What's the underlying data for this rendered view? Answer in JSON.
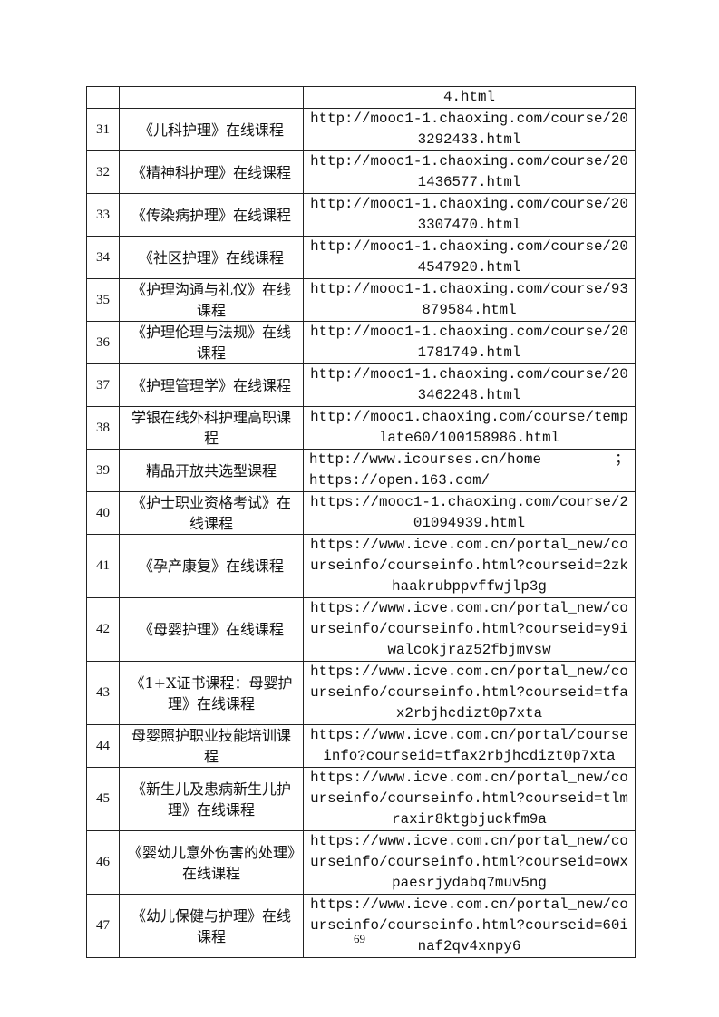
{
  "table": {
    "rows": [
      {
        "no": "",
        "name": "",
        "url": "4.html"
      },
      {
        "no": "31",
        "name": "《儿科护理》在线课程",
        "url": "http://mooc1-1.chaoxing.com/course/203292433.html"
      },
      {
        "no": "32",
        "name": "《精神科护理》在线课程",
        "url": "http://mooc1-1.chaoxing.com/course/201436577.html"
      },
      {
        "no": "33",
        "name": "《传染病护理》在线课程",
        "url": "http://mooc1-1.chaoxing.com/course/203307470.html"
      },
      {
        "no": "34",
        "name": "《社区护理》在线课程",
        "url": "http://mooc1-1.chaoxing.com/course/204547920.html"
      },
      {
        "no": "35",
        "name": "《护理沟通与礼仪》在线课程",
        "url": "http://mooc1-1.chaoxing.com/course/93879584.html"
      },
      {
        "no": "36",
        "name": "《护理伦理与法规》在线课程",
        "url": "http://mooc1-1.chaoxing.com/course/201781749.html"
      },
      {
        "no": "37",
        "name": "《护理管理学》在线课程",
        "url": "http://mooc1-1.chaoxing.com/course/203462248.html"
      },
      {
        "no": "38",
        "name": "学银在线外科护理高职课程",
        "url": "http://mooc1.chaoxing.com/course/template60/100158986.html"
      },
      {
        "no": "39",
        "name": "精品开放共选型课程",
        "url_parts": [
          "http://www.icourses.cn/home",
          "；",
          "https://open.163.com/"
        ]
      },
      {
        "no": "40",
        "name": "《护士职业资格考试》在线课程",
        "url": "https://mooc1-1.chaoxing.com/course/201094939.html"
      },
      {
        "no": "41",
        "name": "《孕产康复》在线课程",
        "url": "https://www.icve.com.cn/portal_new/courseinfo/courseinfo.html?courseid=2zkhaakrubppvffwjlp3g"
      },
      {
        "no": "42",
        "name": "《母婴护理》在线课程",
        "url": "https://www.icve.com.cn/portal_new/courseinfo/courseinfo.html?courseid=y9iwalcokjraz52fbjmvsw"
      },
      {
        "no": "43",
        "name": "《1+X证书课程：母婴护理》在线课程",
        "url": "https://www.icve.com.cn/portal_new/courseinfo/courseinfo.html?courseid=tfax2rbjhcdizt0p7xta"
      },
      {
        "no": "44",
        "name": "母婴照护职业技能培训课程",
        "url": "https://www.icve.com.cn/portal/courseinfo?courseid=tfax2rbjhcdizt0p7xta"
      },
      {
        "no": "45",
        "name": "《新生儿及患病新生儿护理》在线课程",
        "url": "https://www.icve.com.cn/portal_new/courseinfo/courseinfo.html?courseid=tlmraxir8ktgbjuckfm9a"
      },
      {
        "no": "46",
        "name": "《婴幼儿意外伤害的处理》在线课程",
        "url": "https://www.icve.com.cn/portal_new/courseinfo/courseinfo.html?courseid=owxpaesrjydabq7muv5ng"
      },
      {
        "no": "47",
        "name": "《幼儿保健与护理》在线课程",
        "url": "https://www.icve.com.cn/portal_new/courseinfo/courseinfo.html?courseid=60inaf2qv4xnpy6"
      }
    ]
  },
  "page_number": "69"
}
